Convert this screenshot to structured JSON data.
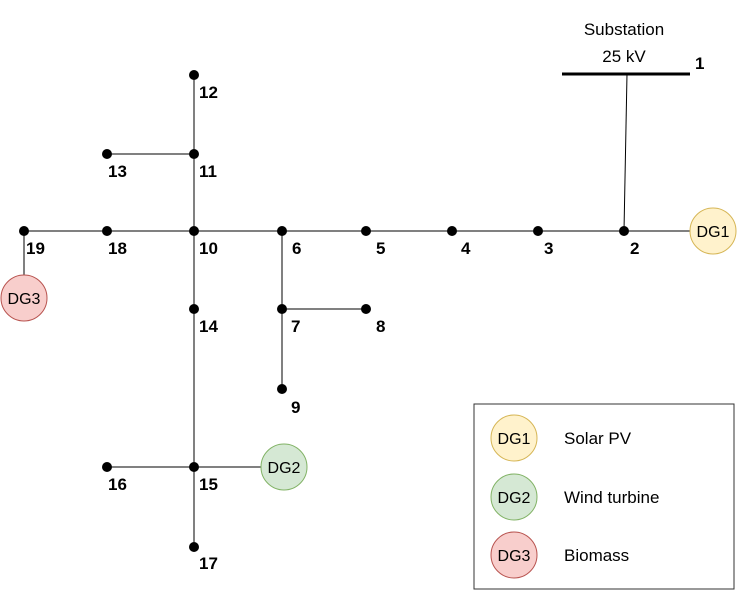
{
  "substation": {
    "line1": "Substation",
    "line2": "25 kV"
  },
  "buses": [
    "1",
    "2",
    "3",
    "4",
    "5",
    "6",
    "7",
    "8",
    "9",
    "10",
    "11",
    "12",
    "13",
    "14",
    "15",
    "16",
    "17",
    "18",
    "19"
  ],
  "generators": [
    {
      "id": "DG1",
      "label": "DG1",
      "bus": "2",
      "fill": "#fff2cc",
      "stroke": "#d6b656"
    },
    {
      "id": "DG2",
      "label": "DG2",
      "bus": "15",
      "fill": "#d5e8d4",
      "stroke": "#82b366"
    },
    {
      "id": "DG3",
      "label": "DG3",
      "bus": "19",
      "fill": "#f8cecc",
      "stroke": "#b85450"
    }
  ],
  "legend": {
    "items": [
      {
        "label": "DG1",
        "text": "Solar PV",
        "fill": "#fff2cc",
        "stroke": "#d6b656"
      },
      {
        "label": "DG2",
        "text": "Wind turbine",
        "fill": "#d5e8d4",
        "stroke": "#82b366"
      },
      {
        "label": "DG3",
        "text": "Biomass",
        "fill": "#f8cecc",
        "stroke": "#b85450"
      }
    ]
  },
  "colors": {
    "line": "#000000",
    "legend_border": "#333333"
  }
}
